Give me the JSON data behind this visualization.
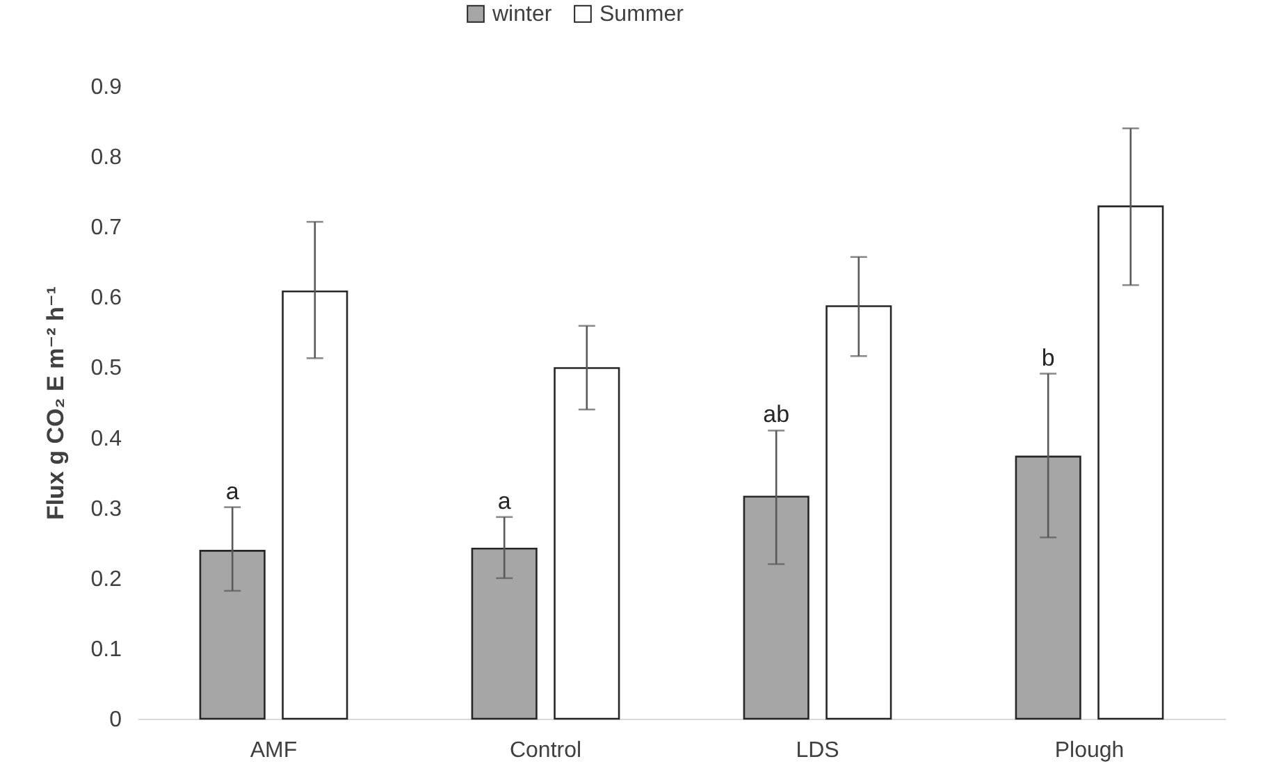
{
  "chart_data": {
    "type": "bar",
    "ylabel": "Flux g CO₂ E m⁻² h⁻¹",
    "categories": [
      "AMF",
      "Control",
      "LDS",
      "Plough"
    ],
    "series": [
      {
        "name": "winter",
        "color": "#a6a6a6",
        "values": [
          0.239,
          0.242,
          0.316,
          0.373
        ],
        "errors": [
          [
            0.182,
            0.301
          ],
          [
            0.2,
            0.287
          ],
          [
            0.22,
            0.41
          ],
          [
            0.258,
            0.491
          ]
        ]
      },
      {
        "name": "Summer",
        "color": "#ffffff",
        "values": [
          0.608,
          0.499,
          0.587,
          0.729
        ],
        "errors": [
          [
            0.513,
            0.707
          ],
          [
            0.44,
            0.559
          ],
          [
            0.516,
            0.657
          ],
          [
            0.617,
            0.84
          ]
        ]
      }
    ],
    "ylim": [
      0,
      0.9
    ],
    "yticks": [
      0,
      0.1,
      0.2,
      0.3,
      0.4,
      0.5,
      0.6,
      0.7,
      0.8,
      0.9
    ],
    "grid": false,
    "legend": "top",
    "annotations": [
      "a",
      "a",
      "ab",
      "b"
    ]
  }
}
